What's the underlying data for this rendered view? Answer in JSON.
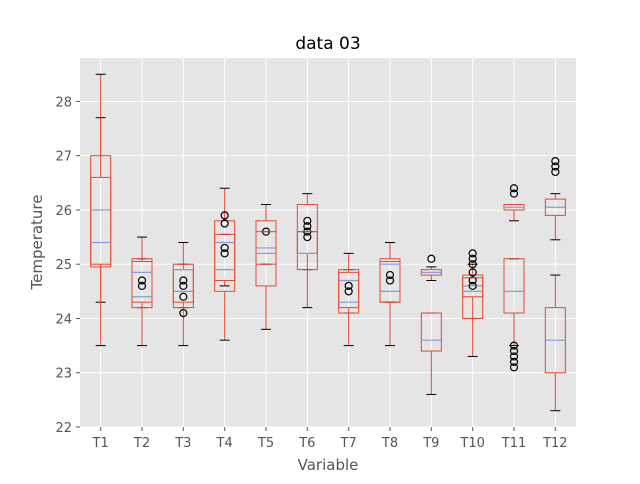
{
  "chart_data": {
    "type": "boxplot",
    "title": "data 03",
    "xlabel": "Variable",
    "ylabel": "Temperature",
    "ylim": [
      22,
      28.8
    ],
    "yticks": [
      22,
      23,
      24,
      25,
      26,
      27,
      28
    ],
    "grid": true,
    "style": "ggplot",
    "colors": {
      "background": "#e5e5e5",
      "grid": "#ffffff",
      "box": "#e24a33",
      "whisker": "#e24a33",
      "cap": "#000000",
      "outlier": "#000000",
      "median_line": "#8a9ad8"
    },
    "categories": [
      "T1",
      "T2",
      "T3",
      "T4",
      "T5",
      "T6",
      "T7",
      "T8",
      "T9",
      "T10",
      "T11",
      "T12"
    ],
    "groups": [
      {
        "category": "T1",
        "series": [
          {
            "q1": 24.95,
            "median": 26.0,
            "q3": 27.0,
            "whisker_low": 24.3,
            "whisker_high": 28.5,
            "outliers": []
          },
          {
            "q1": 25.0,
            "median": 25.4,
            "q3": 26.6,
            "whisker_low": 23.5,
            "whisker_high": 27.7,
            "outliers": []
          }
        ]
      },
      {
        "category": "T2",
        "series": [
          {
            "q1": 24.3,
            "median": 24.4,
            "q3": 25.05,
            "whisker_low": 23.5,
            "whisker_high": 25.5,
            "outliers": [
              24.6,
              24.7
            ]
          },
          {
            "q1": 24.2,
            "median": 24.85,
            "q3": 25.1,
            "whisker_low": 24.2,
            "whisker_high": 25.1,
            "outliers": []
          }
        ]
      },
      {
        "category": "T3",
        "series": [
          {
            "q1": 24.3,
            "median": 24.5,
            "q3": 24.9,
            "whisker_low": 23.5,
            "whisker_high": 25.4,
            "outliers": [
              24.1,
              24.4,
              24.6,
              24.7
            ]
          },
          {
            "q1": 24.2,
            "median": 24.9,
            "q3": 25.0,
            "whisker_low": 24.2,
            "whisker_high": 25.0,
            "outliers": []
          }
        ]
      },
      {
        "category": "T4",
        "series": [
          {
            "q1": 24.7,
            "median": 25.4,
            "q3": 25.8,
            "whisker_low": 24.6,
            "whisker_high": 26.4,
            "outliers": [
              25.2,
              25.3,
              25.75,
              25.9
            ]
          },
          {
            "q1": 24.5,
            "median": 24.9,
            "q3": 25.55,
            "whisker_low": 23.6,
            "whisker_high": 25.55,
            "outliers": []
          }
        ]
      },
      {
        "category": "T5",
        "series": [
          {
            "q1": 25.0,
            "median": 25.3,
            "q3": 25.8,
            "whisker_low": 25.0,
            "whisker_high": 26.1,
            "outliers": [
              25.6
            ]
          },
          {
            "q1": 24.6,
            "median": 25.2,
            "q3": 25.6,
            "whisker_low": 23.8,
            "whisker_high": 25.6,
            "outliers": []
          }
        ]
      },
      {
        "category": "T6",
        "series": [
          {
            "q1": 25.2,
            "median": 25.6,
            "q3": 26.1,
            "whisker_low": 24.2,
            "whisker_high": 26.3,
            "outliers": [
              25.5,
              25.6,
              25.7,
              25.8
            ]
          },
          {
            "q1": 24.9,
            "median": 25.2,
            "q3": 25.6,
            "whisker_low": 24.9,
            "whisker_high": 25.6,
            "outliers": []
          }
        ]
      },
      {
        "category": "T7",
        "series": [
          {
            "q1": 24.2,
            "median": 24.7,
            "q3": 24.85,
            "whisker_low": 23.5,
            "whisker_high": 25.2,
            "outliers": [
              24.5,
              24.6
            ]
          },
          {
            "q1": 24.1,
            "median": 24.3,
            "q3": 24.9,
            "whisker_low": 24.1,
            "whisker_high": 24.9,
            "outliers": []
          }
        ]
      },
      {
        "category": "T8",
        "series": [
          {
            "q1": 24.3,
            "median": 24.5,
            "q3": 25.1,
            "whisker_low": 23.5,
            "whisker_high": 25.4,
            "outliers": [
              24.7,
              24.8
            ]
          },
          {
            "q1": 24.3,
            "median": 25.0,
            "q3": 25.05,
            "whisker_low": 24.3,
            "whisker_high": 25.05,
            "outliers": []
          }
        ]
      },
      {
        "category": "T9",
        "series": [
          {
            "q1": 24.8,
            "median": 24.85,
            "q3": 24.9,
            "whisker_low": 24.7,
            "whisker_high": 24.95,
            "outliers": [
              25.1
            ]
          },
          {
            "q1": 23.4,
            "median": 23.6,
            "q3": 24.1,
            "whisker_low": 22.6,
            "whisker_high": 24.1,
            "outliers": []
          }
        ]
      },
      {
        "category": "T10",
        "series": [
          {
            "q1": 24.4,
            "median": 24.6,
            "q3": 24.8,
            "whisker_low": 23.3,
            "whisker_high": 25.0,
            "outliers": [
              24.6,
              24.7,
              24.85,
              25.0,
              25.1,
              25.2
            ]
          },
          {
            "q1": 24.0,
            "median": 24.5,
            "q3": 24.75,
            "whisker_low": 24.0,
            "whisker_high": 24.75,
            "outliers": []
          }
        ]
      },
      {
        "category": "T11",
        "series": [
          {
            "q1": 26.0,
            "median": 26.05,
            "q3": 26.1,
            "whisker_low": 25.8,
            "whisker_high": 26.1,
            "outliers": [
              26.3,
              26.4
            ]
          },
          {
            "q1": 24.1,
            "median": 24.5,
            "q3": 25.1,
            "whisker_low": 23.5,
            "whisker_high": 25.1,
            "outliers": [
              23.1,
              23.2,
              23.3,
              23.4,
              23.5
            ]
          }
        ]
      },
      {
        "category": "T12",
        "series": [
          {
            "q1": 25.9,
            "median": 26.05,
            "q3": 26.2,
            "whisker_low": 25.45,
            "whisker_high": 26.3,
            "outliers": [
              26.7,
              26.8,
              26.9
            ]
          },
          {
            "q1": 23.0,
            "median": 23.6,
            "q3": 24.2,
            "whisker_low": 22.3,
            "whisker_high": 24.8,
            "outliers": []
          }
        ]
      }
    ]
  }
}
